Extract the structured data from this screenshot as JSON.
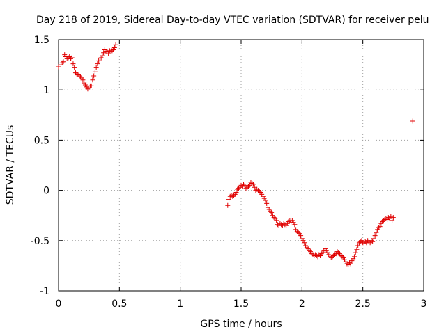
{
  "chart_data": {
    "type": "scatter",
    "title": "Day 218 of 2019, Sidereal Day-to-day VTEC variation (SDTVAR) for receiver pelu",
    "xlabel": "GPS time / hours",
    "ylabel": "SDTVAR / TECUs",
    "xlim": [
      0,
      3
    ],
    "ylim": [
      -1,
      1.5
    ],
    "xticks": [
      0,
      0.5,
      1,
      1.5,
      2,
      2.5,
      3
    ],
    "xtick_labels": [
      "0",
      "0.5",
      "1",
      "1.5",
      "2",
      "2.5",
      "3"
    ],
    "yticks": [
      -1,
      -0.5,
      0,
      0.5,
      1,
      1.5
    ],
    "ytick_labels": [
      "-1",
      "-0.5",
      "0",
      "0.5",
      "1",
      "1.5"
    ],
    "grid": true,
    "marker": "+",
    "color": "#e00000",
    "series": [
      {
        "name": "SDTVAR",
        "points": [
          [
            0.0,
            1.23
          ],
          [
            0.02,
            1.25
          ],
          [
            0.03,
            1.27
          ],
          [
            0.04,
            1.28
          ],
          [
            0.05,
            1.35
          ],
          [
            0.06,
            1.33
          ],
          [
            0.07,
            1.31
          ],
          [
            0.08,
            1.32
          ],
          [
            0.09,
            1.33
          ],
          [
            0.1,
            1.31
          ],
          [
            0.11,
            1.32
          ],
          [
            0.12,
            1.26
          ],
          [
            0.13,
            1.22
          ],
          [
            0.14,
            1.17
          ],
          [
            0.15,
            1.16
          ],
          [
            0.16,
            1.15
          ],
          [
            0.17,
            1.14
          ],
          [
            0.18,
            1.13
          ],
          [
            0.19,
            1.12
          ],
          [
            0.2,
            1.1
          ],
          [
            0.21,
            1.07
          ],
          [
            0.22,
            1.05
          ],
          [
            0.23,
            1.03
          ],
          [
            0.24,
            1.01
          ],
          [
            0.25,
            1.02
          ],
          [
            0.26,
            1.04
          ],
          [
            0.27,
            1.04
          ],
          [
            0.28,
            1.1
          ],
          [
            0.29,
            1.14
          ],
          [
            0.3,
            1.18
          ],
          [
            0.31,
            1.22
          ],
          [
            0.32,
            1.26
          ],
          [
            0.33,
            1.29
          ],
          [
            0.34,
            1.29
          ],
          [
            0.35,
            1.32
          ],
          [
            0.36,
            1.34
          ],
          [
            0.37,
            1.37
          ],
          [
            0.38,
            1.4
          ],
          [
            0.39,
            1.38
          ],
          [
            0.4,
            1.38
          ],
          [
            0.41,
            1.36
          ],
          [
            0.42,
            1.39
          ],
          [
            0.43,
            1.38
          ],
          [
            0.44,
            1.39
          ],
          [
            0.45,
            1.4
          ],
          [
            0.46,
            1.42
          ],
          [
            0.47,
            1.45
          ],
          [
            1.39,
            -0.15
          ],
          [
            1.4,
            -0.09
          ],
          [
            1.41,
            -0.06
          ],
          [
            1.42,
            -0.05
          ],
          [
            1.43,
            -0.06
          ],
          [
            1.44,
            -0.05
          ],
          [
            1.45,
            -0.04
          ],
          [
            1.46,
            -0.02
          ],
          [
            1.47,
            0.01
          ],
          [
            1.48,
            0.02
          ],
          [
            1.49,
            0.03
          ],
          [
            1.5,
            0.05
          ],
          [
            1.51,
            0.04
          ],
          [
            1.52,
            0.06
          ],
          [
            1.53,
            0.05
          ],
          [
            1.54,
            0.02
          ],
          [
            1.55,
            0.03
          ],
          [
            1.56,
            0.04
          ],
          [
            1.57,
            0.05
          ],
          [
            1.58,
            0.08
          ],
          [
            1.59,
            0.07
          ],
          [
            1.6,
            0.06
          ],
          [
            1.61,
            0.03
          ],
          [
            1.62,
            0.0
          ],
          [
            1.63,
            0.01
          ],
          [
            1.64,
            0.0
          ],
          [
            1.65,
            -0.01
          ],
          [
            1.66,
            -0.02
          ],
          [
            1.67,
            -0.04
          ],
          [
            1.68,
            -0.06
          ],
          [
            1.69,
            -0.08
          ],
          [
            1.7,
            -0.1
          ],
          [
            1.71,
            -0.13
          ],
          [
            1.72,
            -0.17
          ],
          [
            1.73,
            -0.19
          ],
          [
            1.74,
            -0.21
          ],
          [
            1.75,
            -0.22
          ],
          [
            1.76,
            -0.25
          ],
          [
            1.77,
            -0.27
          ],
          [
            1.78,
            -0.28
          ],
          [
            1.79,
            -0.3
          ],
          [
            1.8,
            -0.34
          ],
          [
            1.81,
            -0.35
          ],
          [
            1.82,
            -0.33
          ],
          [
            1.83,
            -0.34
          ],
          [
            1.84,
            -0.35
          ],
          [
            1.85,
            -0.33
          ],
          [
            1.86,
            -0.34
          ],
          [
            1.87,
            -0.35
          ],
          [
            1.88,
            -0.33
          ],
          [
            1.89,
            -0.31
          ],
          [
            1.9,
            -0.3
          ],
          [
            1.91,
            -0.32
          ],
          [
            1.92,
            -0.3
          ],
          [
            1.93,
            -0.32
          ],
          [
            1.94,
            -0.34
          ],
          [
            1.95,
            -0.39
          ],
          [
            1.96,
            -0.41
          ],
          [
            1.97,
            -0.42
          ],
          [
            1.98,
            -0.43
          ],
          [
            1.99,
            -0.45
          ],
          [
            2.0,
            -0.48
          ],
          [
            2.01,
            -0.5
          ],
          [
            2.02,
            -0.52
          ],
          [
            2.03,
            -0.55
          ],
          [
            2.04,
            -0.57
          ],
          [
            2.05,
            -0.58
          ],
          [
            2.06,
            -0.6
          ],
          [
            2.07,
            -0.61
          ],
          [
            2.08,
            -0.63
          ],
          [
            2.09,
            -0.64
          ],
          [
            2.1,
            -0.65
          ],
          [
            2.11,
            -0.64
          ],
          [
            2.12,
            -0.65
          ],
          [
            2.13,
            -0.66
          ],
          [
            2.14,
            -0.64
          ],
          [
            2.15,
            -0.65
          ],
          [
            2.16,
            -0.63
          ],
          [
            2.17,
            -0.62
          ],
          [
            2.18,
            -0.6
          ],
          [
            2.19,
            -0.58
          ],
          [
            2.2,
            -0.6
          ],
          [
            2.21,
            -0.62
          ],
          [
            2.22,
            -0.64
          ],
          [
            2.23,
            -0.66
          ],
          [
            2.24,
            -0.67
          ],
          [
            2.25,
            -0.66
          ],
          [
            2.26,
            -0.65
          ],
          [
            2.27,
            -0.64
          ],
          [
            2.28,
            -0.63
          ],
          [
            2.29,
            -0.61
          ],
          [
            2.3,
            -0.62
          ],
          [
            2.31,
            -0.63
          ],
          [
            2.32,
            -0.65
          ],
          [
            2.33,
            -0.66
          ],
          [
            2.34,
            -0.67
          ],
          [
            2.35,
            -0.69
          ],
          [
            2.36,
            -0.71
          ],
          [
            2.37,
            -0.73
          ],
          [
            2.38,
            -0.74
          ],
          [
            2.39,
            -0.72
          ],
          [
            2.4,
            -0.73
          ],
          [
            2.41,
            -0.7
          ],
          [
            2.42,
            -0.68
          ],
          [
            2.43,
            -0.66
          ],
          [
            2.44,
            -0.62
          ],
          [
            2.45,
            -0.59
          ],
          [
            2.46,
            -0.55
          ],
          [
            2.47,
            -0.52
          ],
          [
            2.48,
            -0.51
          ],
          [
            2.49,
            -0.5
          ],
          [
            2.5,
            -0.52
          ],
          [
            2.51,
            -0.53
          ],
          [
            2.52,
            -0.51
          ],
          [
            2.53,
            -0.52
          ],
          [
            2.54,
            -0.5
          ],
          [
            2.55,
            -0.51
          ],
          [
            2.56,
            -0.52
          ],
          [
            2.57,
            -0.5
          ],
          [
            2.58,
            -0.51
          ],
          [
            2.59,
            -0.48
          ],
          [
            2.6,
            -0.45
          ],
          [
            2.61,
            -0.42
          ],
          [
            2.62,
            -0.39
          ],
          [
            2.63,
            -0.37
          ],
          [
            2.64,
            -0.36
          ],
          [
            2.65,
            -0.33
          ],
          [
            2.66,
            -0.31
          ],
          [
            2.67,
            -0.3
          ],
          [
            2.68,
            -0.29
          ],
          [
            2.69,
            -0.28
          ],
          [
            2.7,
            -0.29
          ],
          [
            2.71,
            -0.27
          ],
          [
            2.72,
            -0.28
          ],
          [
            2.73,
            -0.26
          ],
          [
            2.74,
            -0.3
          ],
          [
            2.75,
            -0.27
          ],
          [
            2.91,
            0.69
          ]
        ]
      }
    ]
  }
}
